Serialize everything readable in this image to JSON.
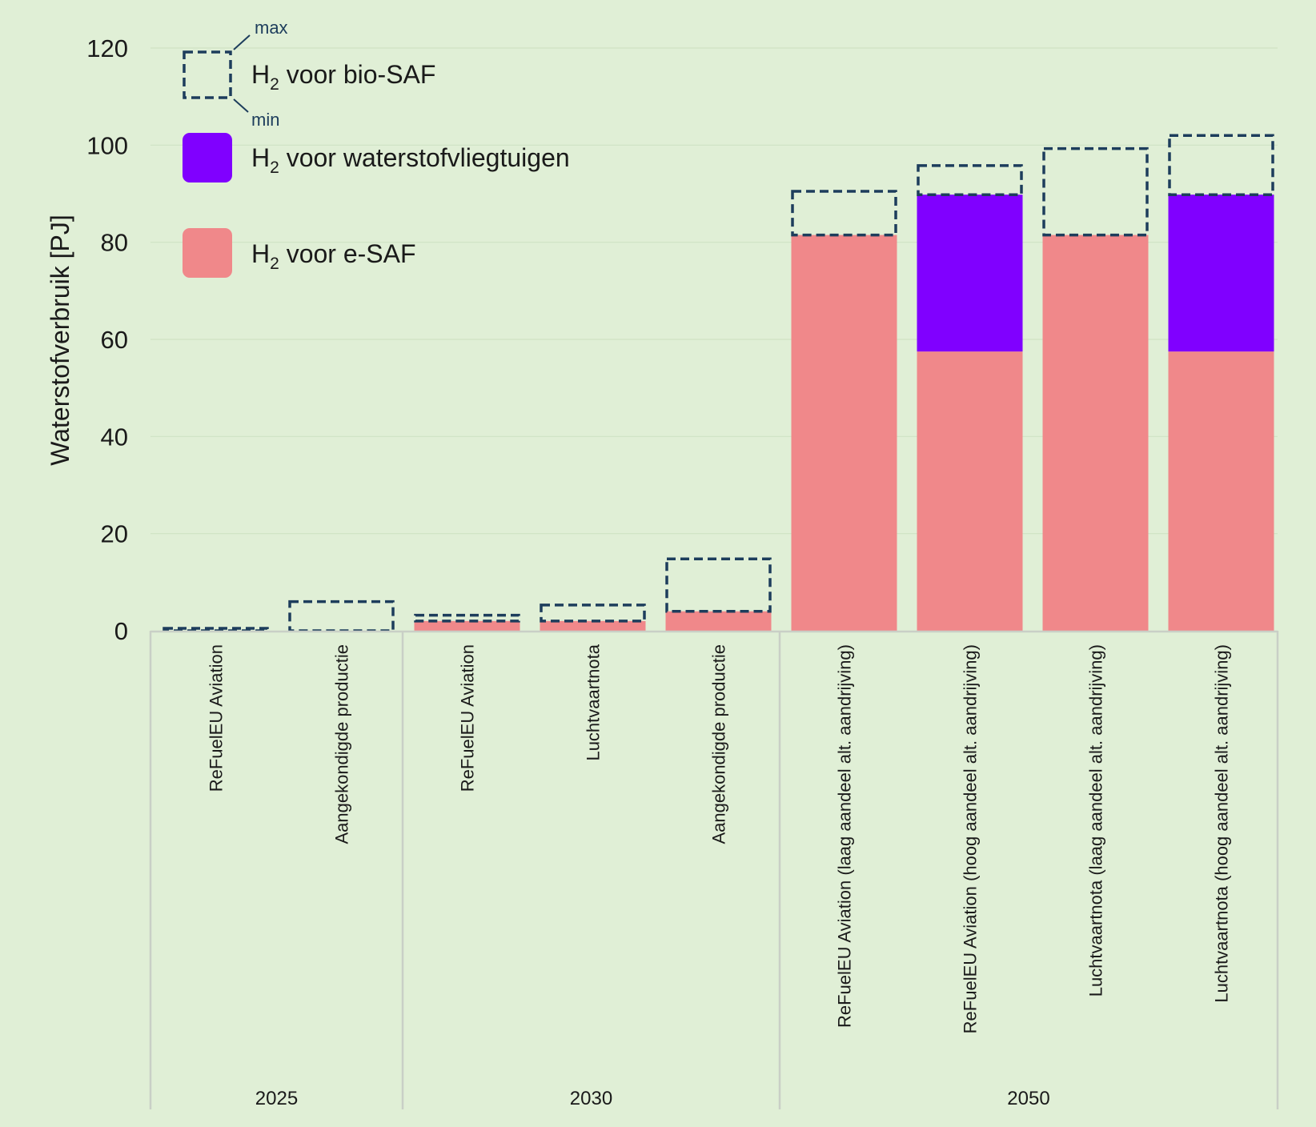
{
  "chart_data": {
    "type": "bar",
    "ylabel": "Waterstofverbruik [PJ]",
    "ylim": [
      0,
      120
    ],
    "yticks": [
      0,
      20,
      40,
      60,
      80,
      100,
      120
    ],
    "grid": true,
    "legend_position": "top-left",
    "legend": {
      "bio": {
        "prefix": "H",
        "sub": "2",
        "text": " voor bio-SAF",
        "max_label": "max",
        "min_label": "min",
        "color": "#1d3d5c"
      },
      "aircraft": {
        "prefix": "H",
        "sub": "2",
        "text": " voor waterstofvliegtuigen",
        "color": "#8000ff"
      },
      "esaf": {
        "prefix": "H",
        "sub": "2",
        "text": " voor e-SAF",
        "color": "#f0888a"
      }
    },
    "groups": [
      {
        "label": "2025",
        "categories": [
          {
            "label": "ReFuelEU Aviation",
            "esaf": 0,
            "aircraft": 0,
            "bio_min": 0,
            "bio_max": 0.5
          },
          {
            "label": "Aangekondigde productie",
            "esaf": 0,
            "aircraft": 0,
            "bio_min": 0,
            "bio_max": 6
          }
        ]
      },
      {
        "label": "2030",
        "categories": [
          {
            "label": "ReFuelEU Aviation",
            "esaf": 2,
            "aircraft": 0,
            "bio_min": 2,
            "bio_max": 3.2
          },
          {
            "label": "Luchtvaartnota",
            "esaf": 2,
            "aircraft": 0,
            "bio_min": 2,
            "bio_max": 5.3
          },
          {
            "label": "Aangekondigde productie",
            "esaf": 4,
            "aircraft": 0,
            "bio_min": 4,
            "bio_max": 14.8
          }
        ]
      },
      {
        "label": "2050",
        "categories": [
          {
            "label": "ReFuelEU Aviation (laag aandeel alt. aandrijving)",
            "esaf": 81.5,
            "aircraft": 0,
            "bio_min": 81.5,
            "bio_max": 90.5
          },
          {
            "label": "ReFuelEU Aviation (hoog aandeel alt. aandrijving)",
            "esaf": 57.5,
            "aircraft": 32.3,
            "bio_min": 89.8,
            "bio_max": 95.8
          },
          {
            "label": "Luchtvaartnota (laag aandeel alt. aandrijving)",
            "esaf": 81.5,
            "aircraft": 0,
            "bio_min": 81.5,
            "bio_max": 99.3
          },
          {
            "label": "Luchtvaartnota (hoog aandeel alt. aandrijving)",
            "esaf": 57.5,
            "aircraft": 32.3,
            "bio_min": 89.8,
            "bio_max": 102
          }
        ]
      }
    ]
  }
}
